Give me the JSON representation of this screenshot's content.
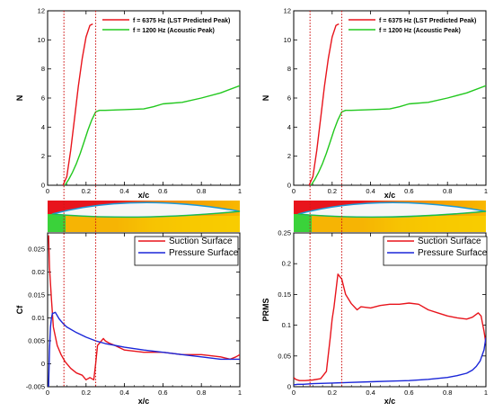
{
  "chart_data": [
    {
      "type": "line",
      "panel": "top-left",
      "ylabel": "N",
      "xlabel": "x/c",
      "xlim": [
        0,
        1
      ],
      "ylim": [
        0,
        12
      ],
      "xticks": [
        "0",
        "0.2",
        "0.4",
        "0.6",
        "0.8",
        "1"
      ],
      "yticks": [
        "0",
        "2",
        "4",
        "6",
        "8",
        "10",
        "12"
      ],
      "vlines": [
        0.085,
        0.25
      ],
      "legend": "top-right",
      "series": [
        {
          "name": "f = 6375 Hz (LST Predicted Peak)",
          "color": "#e8141c",
          "x": [
            0.08,
            0.1,
            0.12,
            0.14,
            0.16,
            0.18,
            0.2,
            0.22,
            0.235
          ],
          "y": [
            0,
            0.6,
            2.4,
            4.6,
            6.8,
            8.7,
            10.2,
            11.0,
            11.1
          ]
        },
        {
          "name": "f = 1200 Hz (Acoustic Peak)",
          "color": "#22c81e",
          "x": [
            0.09,
            0.11,
            0.13,
            0.15,
            0.17,
            0.19,
            0.21,
            0.23,
            0.25,
            0.27,
            0.3,
            0.4,
            0.5,
            0.55,
            0.6,
            0.7,
            0.8,
            0.9,
            1.0
          ],
          "y": [
            0,
            0.4,
            0.9,
            1.5,
            2.2,
            3.0,
            3.8,
            4.5,
            5.05,
            5.15,
            5.15,
            5.2,
            5.25,
            5.4,
            5.6,
            5.7,
            6.0,
            6.35,
            6.85
          ]
        }
      ]
    },
    {
      "type": "line",
      "panel": "top-right",
      "ylabel": "N",
      "xlabel": "x/c",
      "xlim": [
        0,
        1
      ],
      "ylim": [
        0,
        12
      ],
      "xticks": [
        "0",
        "0.2",
        "0.4",
        "0.6",
        "0.8",
        "1"
      ],
      "yticks": [
        "0",
        "2",
        "4",
        "6",
        "8",
        "10",
        "12"
      ],
      "vlines": [
        0.085,
        0.25
      ],
      "legend": "top-right",
      "series": [
        {
          "name": "f = 6375 Hz (LST Predicted Peak)",
          "color": "#e8141c",
          "x": [
            0.08,
            0.1,
            0.12,
            0.14,
            0.16,
            0.18,
            0.2,
            0.22,
            0.235
          ],
          "y": [
            0,
            0.6,
            2.4,
            4.6,
            6.8,
            8.7,
            10.2,
            11.0,
            11.1
          ]
        },
        {
          "name": "f = 1200 Hz (Acoustic Peak)",
          "color": "#22c81e",
          "x": [
            0.09,
            0.11,
            0.13,
            0.15,
            0.17,
            0.19,
            0.21,
            0.23,
            0.25,
            0.27,
            0.3,
            0.4,
            0.5,
            0.55,
            0.6,
            0.7,
            0.8,
            0.9,
            1.0
          ],
          "y": [
            0,
            0.4,
            0.9,
            1.5,
            2.2,
            3.0,
            3.8,
            4.5,
            5.05,
            5.15,
            5.15,
            5.2,
            5.25,
            5.4,
            5.6,
            5.7,
            6.0,
            6.35,
            6.85
          ]
        }
      ]
    },
    {
      "type": "line",
      "panel": "bottom-left",
      "ylabel": "Cf",
      "xlabel": "x/c",
      "xlim": [
        0,
        1
      ],
      "ylim": [
        -0.005,
        0.0285
      ],
      "xticks": [
        "0",
        "0.2",
        "0.4",
        "0.6",
        "0.8",
        "1"
      ],
      "yticks": [
        "-0.005",
        "0",
        "0.005",
        "0.01",
        "0.015",
        "0.02",
        "0.025"
      ],
      "vlines": [
        0.085,
        0.25
      ],
      "legend": "top-right",
      "series": [
        {
          "name": "Suction Surface",
          "color": "#e8141c",
          "x": [
            0.005,
            0.01,
            0.02,
            0.03,
            0.05,
            0.07,
            0.09,
            0.12,
            0.15,
            0.18,
            0.2,
            0.22,
            0.24,
            0.25,
            0.26,
            0.27,
            0.29,
            0.3,
            0.32,
            0.35,
            0.4,
            0.5,
            0.6,
            0.7,
            0.8,
            0.9,
            0.95,
            0.98,
            1.0
          ],
          "y": [
            0.028,
            0.021,
            0.014,
            0.008,
            0.004,
            0.002,
            0.0005,
            -0.001,
            -0.002,
            -0.0025,
            -0.0035,
            -0.003,
            -0.0035,
            0.0,
            0.004,
            0.0045,
            0.0055,
            0.005,
            0.0045,
            0.004,
            0.003,
            0.0025,
            0.0025,
            0.002,
            0.002,
            0.0015,
            0.001,
            0.0015,
            0.002
          ]
        },
        {
          "name": "Pressure Surface",
          "color": "#1a26d8",
          "x": [
            0.005,
            0.01,
            0.015,
            0.02,
            0.025,
            0.03,
            0.04,
            0.06,
            0.08,
            0.1,
            0.15,
            0.2,
            0.25,
            0.3,
            0.4,
            0.5,
            0.6,
            0.7,
            0.8,
            0.9,
            0.95,
            1.0
          ],
          "y": [
            -0.005,
            0.003,
            0.008,
            0.01,
            0.011,
            0.011,
            0.0112,
            0.0098,
            0.0088,
            0.008,
            0.0068,
            0.0058,
            0.005,
            0.0044,
            0.0036,
            0.003,
            0.0025,
            0.002,
            0.0015,
            0.001,
            0.001,
            0.001
          ]
        }
      ]
    },
    {
      "type": "line",
      "panel": "bottom-right",
      "ylabel": "PRMS",
      "xlabel": "x/c",
      "xlim": [
        0,
        1
      ],
      "ylim": [
        0,
        0.25
      ],
      "xticks": [
        "0",
        "0.2",
        "0.4",
        "0.6",
        "0.8",
        "1"
      ],
      "yticks": [
        "0",
        "0.05",
        "0.1",
        "0.15",
        "0.2",
        "0.25"
      ],
      "vlines": [
        0.085,
        0.25
      ],
      "legend": "top-right",
      "series": [
        {
          "name": "Suction Surface",
          "color": "#e8141c",
          "x": [
            0.0,
            0.01,
            0.03,
            0.06,
            0.1,
            0.14,
            0.17,
            0.19,
            0.2,
            0.21,
            0.23,
            0.25,
            0.27,
            0.3,
            0.33,
            0.35,
            0.4,
            0.45,
            0.5,
            0.55,
            0.6,
            0.65,
            0.7,
            0.75,
            0.8,
            0.85,
            0.9,
            0.93,
            0.96,
            0.975,
            0.99,
            1.0
          ],
          "y": [
            0.015,
            0.012,
            0.01,
            0.01,
            0.011,
            0.013,
            0.025,
            0.08,
            0.11,
            0.13,
            0.183,
            0.175,
            0.15,
            0.135,
            0.125,
            0.13,
            0.128,
            0.132,
            0.134,
            0.134,
            0.136,
            0.134,
            0.125,
            0.12,
            0.115,
            0.112,
            0.11,
            0.113,
            0.12,
            0.115,
            0.09,
            0.07
          ]
        },
        {
          "name": "Pressure Surface",
          "color": "#1a26d8",
          "x": [
            0.0,
            0.02,
            0.05,
            0.1,
            0.2,
            0.3,
            0.4,
            0.5,
            0.6,
            0.7,
            0.8,
            0.85,
            0.9,
            0.93,
            0.95,
            0.97,
            0.99,
            1.0
          ],
          "y": [
            0.003,
            0.004,
            0.004,
            0.005,
            0.006,
            0.007,
            0.008,
            0.009,
            0.01,
            0.012,
            0.015,
            0.018,
            0.022,
            0.027,
            0.033,
            0.042,
            0.06,
            0.08
          ]
        }
      ]
    }
  ]
}
